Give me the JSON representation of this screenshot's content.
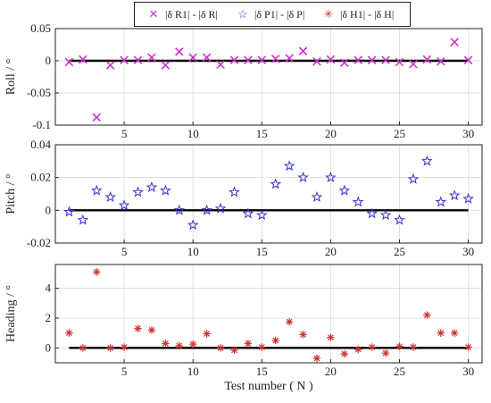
{
  "legend": {
    "items": [
      {
        "label": "|δ R1| - |δ R|",
        "color": "#cc33cc",
        "marker": "x"
      },
      {
        "label": "|δ P1| - |δ P|",
        "color": "#3333cc",
        "marker": "star"
      },
      {
        "label": "|δ H1| - |δ H|",
        "color": "#cc3333",
        "marker": "asterisk"
      }
    ],
    "placement": "top-center"
  },
  "xlabel": "Test number ( N )",
  "chart_data": [
    {
      "type": "scatter",
      "title": "",
      "xlabel": "",
      "ylabel": "Roll / °",
      "xlim": [
        0,
        31
      ],
      "ylim": [
        -0.1,
        0.05
      ],
      "xticks": [
        5,
        10,
        15,
        20,
        25,
        30
      ],
      "yticks": [
        -0.1,
        -0.05,
        0,
        0.05
      ],
      "yticklabels": [
        "-0.1",
        "-0.05",
        "0",
        "0.05"
      ],
      "grid": true,
      "zero_line": true,
      "series": [
        {
          "name": "|δ R1| - |δ R|",
          "color": "#cc33cc",
          "marker": "x",
          "x": [
            1,
            2,
            3,
            4,
            5,
            6,
            7,
            8,
            9,
            10,
            11,
            12,
            13,
            14,
            15,
            16,
            17,
            18,
            19,
            20,
            21,
            22,
            23,
            24,
            25,
            26,
            27,
            28,
            29,
            30
          ],
          "y": [
            -0.002,
            0.002,
            -0.088,
            -0.007,
            0.001,
            0.001,
            0.005,
            -0.007,
            0.014,
            0.005,
            0.005,
            -0.006,
            0.001,
            0.001,
            0.001,
            0.003,
            0.004,
            0.015,
            -0.001,
            0.002,
            -0.003,
            0.001,
            0.001,
            0.001,
            -0.002,
            -0.005,
            0.002,
            -0.001,
            0.029,
            0.001
          ]
        }
      ]
    },
    {
      "type": "scatter",
      "title": "",
      "xlabel": "",
      "ylabel": "Pitch / °",
      "xlim": [
        0,
        31
      ],
      "ylim": [
        -0.02,
        0.04
      ],
      "xticks": [
        5,
        10,
        15,
        20,
        25,
        30
      ],
      "yticks": [
        -0.02,
        0,
        0.02,
        0.04
      ],
      "yticklabels": [
        "-0.02",
        "0",
        "0.02",
        "0.04"
      ],
      "grid": true,
      "zero_line": true,
      "series": [
        {
          "name": "|δ P1| - |δ P|",
          "color": "#3333cc",
          "marker": "star",
          "x": [
            1,
            2,
            3,
            4,
            5,
            6,
            7,
            8,
            9,
            10,
            11,
            12,
            13,
            14,
            15,
            16,
            17,
            18,
            19,
            20,
            21,
            22,
            23,
            24,
            25,
            26,
            27,
            28,
            29,
            30
          ],
          "y": [
            -0.001,
            -0.006,
            0.012,
            0.008,
            0.003,
            0.011,
            0.014,
            0.012,
            0.0,
            -0.009,
            0.0,
            0.001,
            0.011,
            -0.002,
            -0.003,
            0.016,
            0.027,
            0.02,
            0.008,
            0.02,
            0.012,
            0.005,
            -0.002,
            -0.003,
            -0.006,
            0.019,
            0.03,
            0.005,
            0.009,
            0.007
          ]
        }
      ]
    },
    {
      "type": "scatter",
      "title": "",
      "xlabel": "Test number ( N )",
      "ylabel": "Heading / °",
      "xlim": [
        0,
        31
      ],
      "ylim": [
        -1,
        5.6
      ],
      "xticks": [
        5,
        10,
        15,
        20,
        25,
        30
      ],
      "yticks": [
        0,
        2,
        4
      ],
      "yticklabels": [
        "0",
        "2",
        "4"
      ],
      "grid": true,
      "zero_line": true,
      "series": [
        {
          "name": "|δ H1| - |δ H|",
          "color": "#cc3333",
          "marker": "asterisk",
          "x": [
            1,
            2,
            3,
            4,
            5,
            6,
            7,
            8,
            9,
            10,
            11,
            12,
            13,
            14,
            15,
            16,
            17,
            18,
            19,
            20,
            21,
            22,
            23,
            24,
            25,
            26,
            27,
            28,
            29,
            30
          ],
          "y": [
            1.0,
            0.0,
            5.1,
            0.0,
            0.05,
            1.3,
            1.2,
            0.3,
            0.15,
            0.25,
            0.95,
            0.0,
            -0.15,
            0.3,
            0.05,
            0.5,
            1.75,
            0.9,
            -0.7,
            0.7,
            -0.4,
            -0.1,
            0.05,
            -0.35,
            0.1,
            0.05,
            2.2,
            1.0,
            1.0,
            0.05
          ]
        }
      ]
    }
  ]
}
